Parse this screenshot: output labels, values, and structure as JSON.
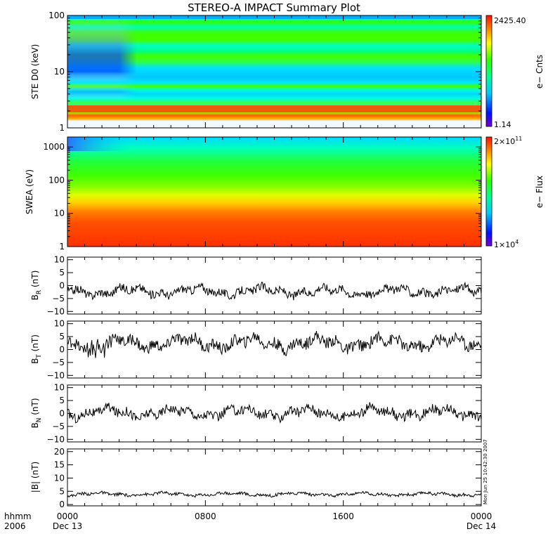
{
  "chart_data": {
    "title": "STEREO-A IMPACT Summary Plot",
    "time_axis": {
      "corner_label_1": "hhmm",
      "corner_label_2": "2006",
      "ticks": [
        {
          "label": "0000",
          "date": "Dec 13",
          "hours": 0
        },
        {
          "label": "0800",
          "date": "",
          "hours": 8
        },
        {
          "label": "1600",
          "date": "",
          "hours": 16
        },
        {
          "label": "0000",
          "date": "Dec 14",
          "hours": 24
        }
      ],
      "range_hours": [
        0,
        24
      ]
    },
    "footer_text": "Mon Jun 25 10:42:30 2007",
    "panels": [
      {
        "id": "ste",
        "type": "heatmap",
        "ylabel": "STE D0 (keV)",
        "scale": "log",
        "ylim": [
          1,
          100
        ],
        "yticks": [
          {
            "value": 1,
            "label": "1"
          },
          {
            "value": 10,
            "label": "10"
          },
          {
            "value": 100,
            "label": "100"
          }
        ],
        "colorbar": {
          "label": "e− Cnts",
          "max_label": "2425.40",
          "min_label": "1.14"
        }
      },
      {
        "id": "swea",
        "type": "heatmap",
        "ylabel": "SWEA (eV)",
        "scale": "log",
        "ylim": [
          1,
          2000
        ],
        "yticks": [
          {
            "value": 1,
            "label": "1"
          },
          {
            "value": 10,
            "label": "10"
          },
          {
            "value": 100,
            "label": "100"
          },
          {
            "value": 1000,
            "label": "1000"
          }
        ],
        "colorbar": {
          "label": "e− Flux",
          "max_base": "2×10",
          "max_exp": "11",
          "min_base": "1×10",
          "min_exp": "4"
        }
      },
      {
        "id": "br",
        "type": "line",
        "ylabel_base": "B",
        "ylabel_sub": "R",
        "ylabel_unit": " (nT)",
        "ylim": [
          -11,
          11
        ],
        "mean": -2.2,
        "amp": 2.0,
        "yticks": [
          {
            "value": 10,
            "label": "10"
          },
          {
            "value": 5,
            "label": "5"
          },
          {
            "value": 0,
            "label": "0"
          },
          {
            "value": -5,
            "label": "−5"
          },
          {
            "value": -10,
            "label": "−10"
          }
        ]
      },
      {
        "id": "bt",
        "type": "line",
        "ylabel_base": "B",
        "ylabel_sub": "T",
        "ylabel_unit": " (nT)",
        "ylim": [
          -11,
          11
        ],
        "mean": 2.5,
        "amp": 2.8,
        "yticks": [
          {
            "value": 10,
            "label": "10"
          },
          {
            "value": 5,
            "label": "5"
          },
          {
            "value": 0,
            "label": "0"
          },
          {
            "value": -5,
            "label": "−5"
          },
          {
            "value": -10,
            "label": "−10"
          }
        ]
      },
      {
        "id": "bn",
        "type": "line",
        "ylabel_base": "B",
        "ylabel_sub": "N",
        "ylabel_unit": " (nT)",
        "ylim": [
          -11,
          11
        ],
        "mean": 0.3,
        "amp": 2.3,
        "yticks": [
          {
            "value": 10,
            "label": "10"
          },
          {
            "value": 5,
            "label": "5"
          },
          {
            "value": 0,
            "label": "0"
          },
          {
            "value": -5,
            "label": "−5"
          },
          {
            "value": -10,
            "label": "−10"
          }
        ]
      },
      {
        "id": "bmag",
        "type": "line",
        "ylabel_base": "|B| (nT)",
        "ylim": [
          -0.5,
          21
        ],
        "mean": 3.9,
        "amp": 0.7,
        "yticks": [
          {
            "value": 20,
            "label": "20"
          },
          {
            "value": 15,
            "label": "15"
          },
          {
            "value": 10,
            "label": "10"
          },
          {
            "value": 5,
            "label": "5"
          },
          {
            "value": 0,
            "label": "0"
          }
        ]
      }
    ]
  }
}
